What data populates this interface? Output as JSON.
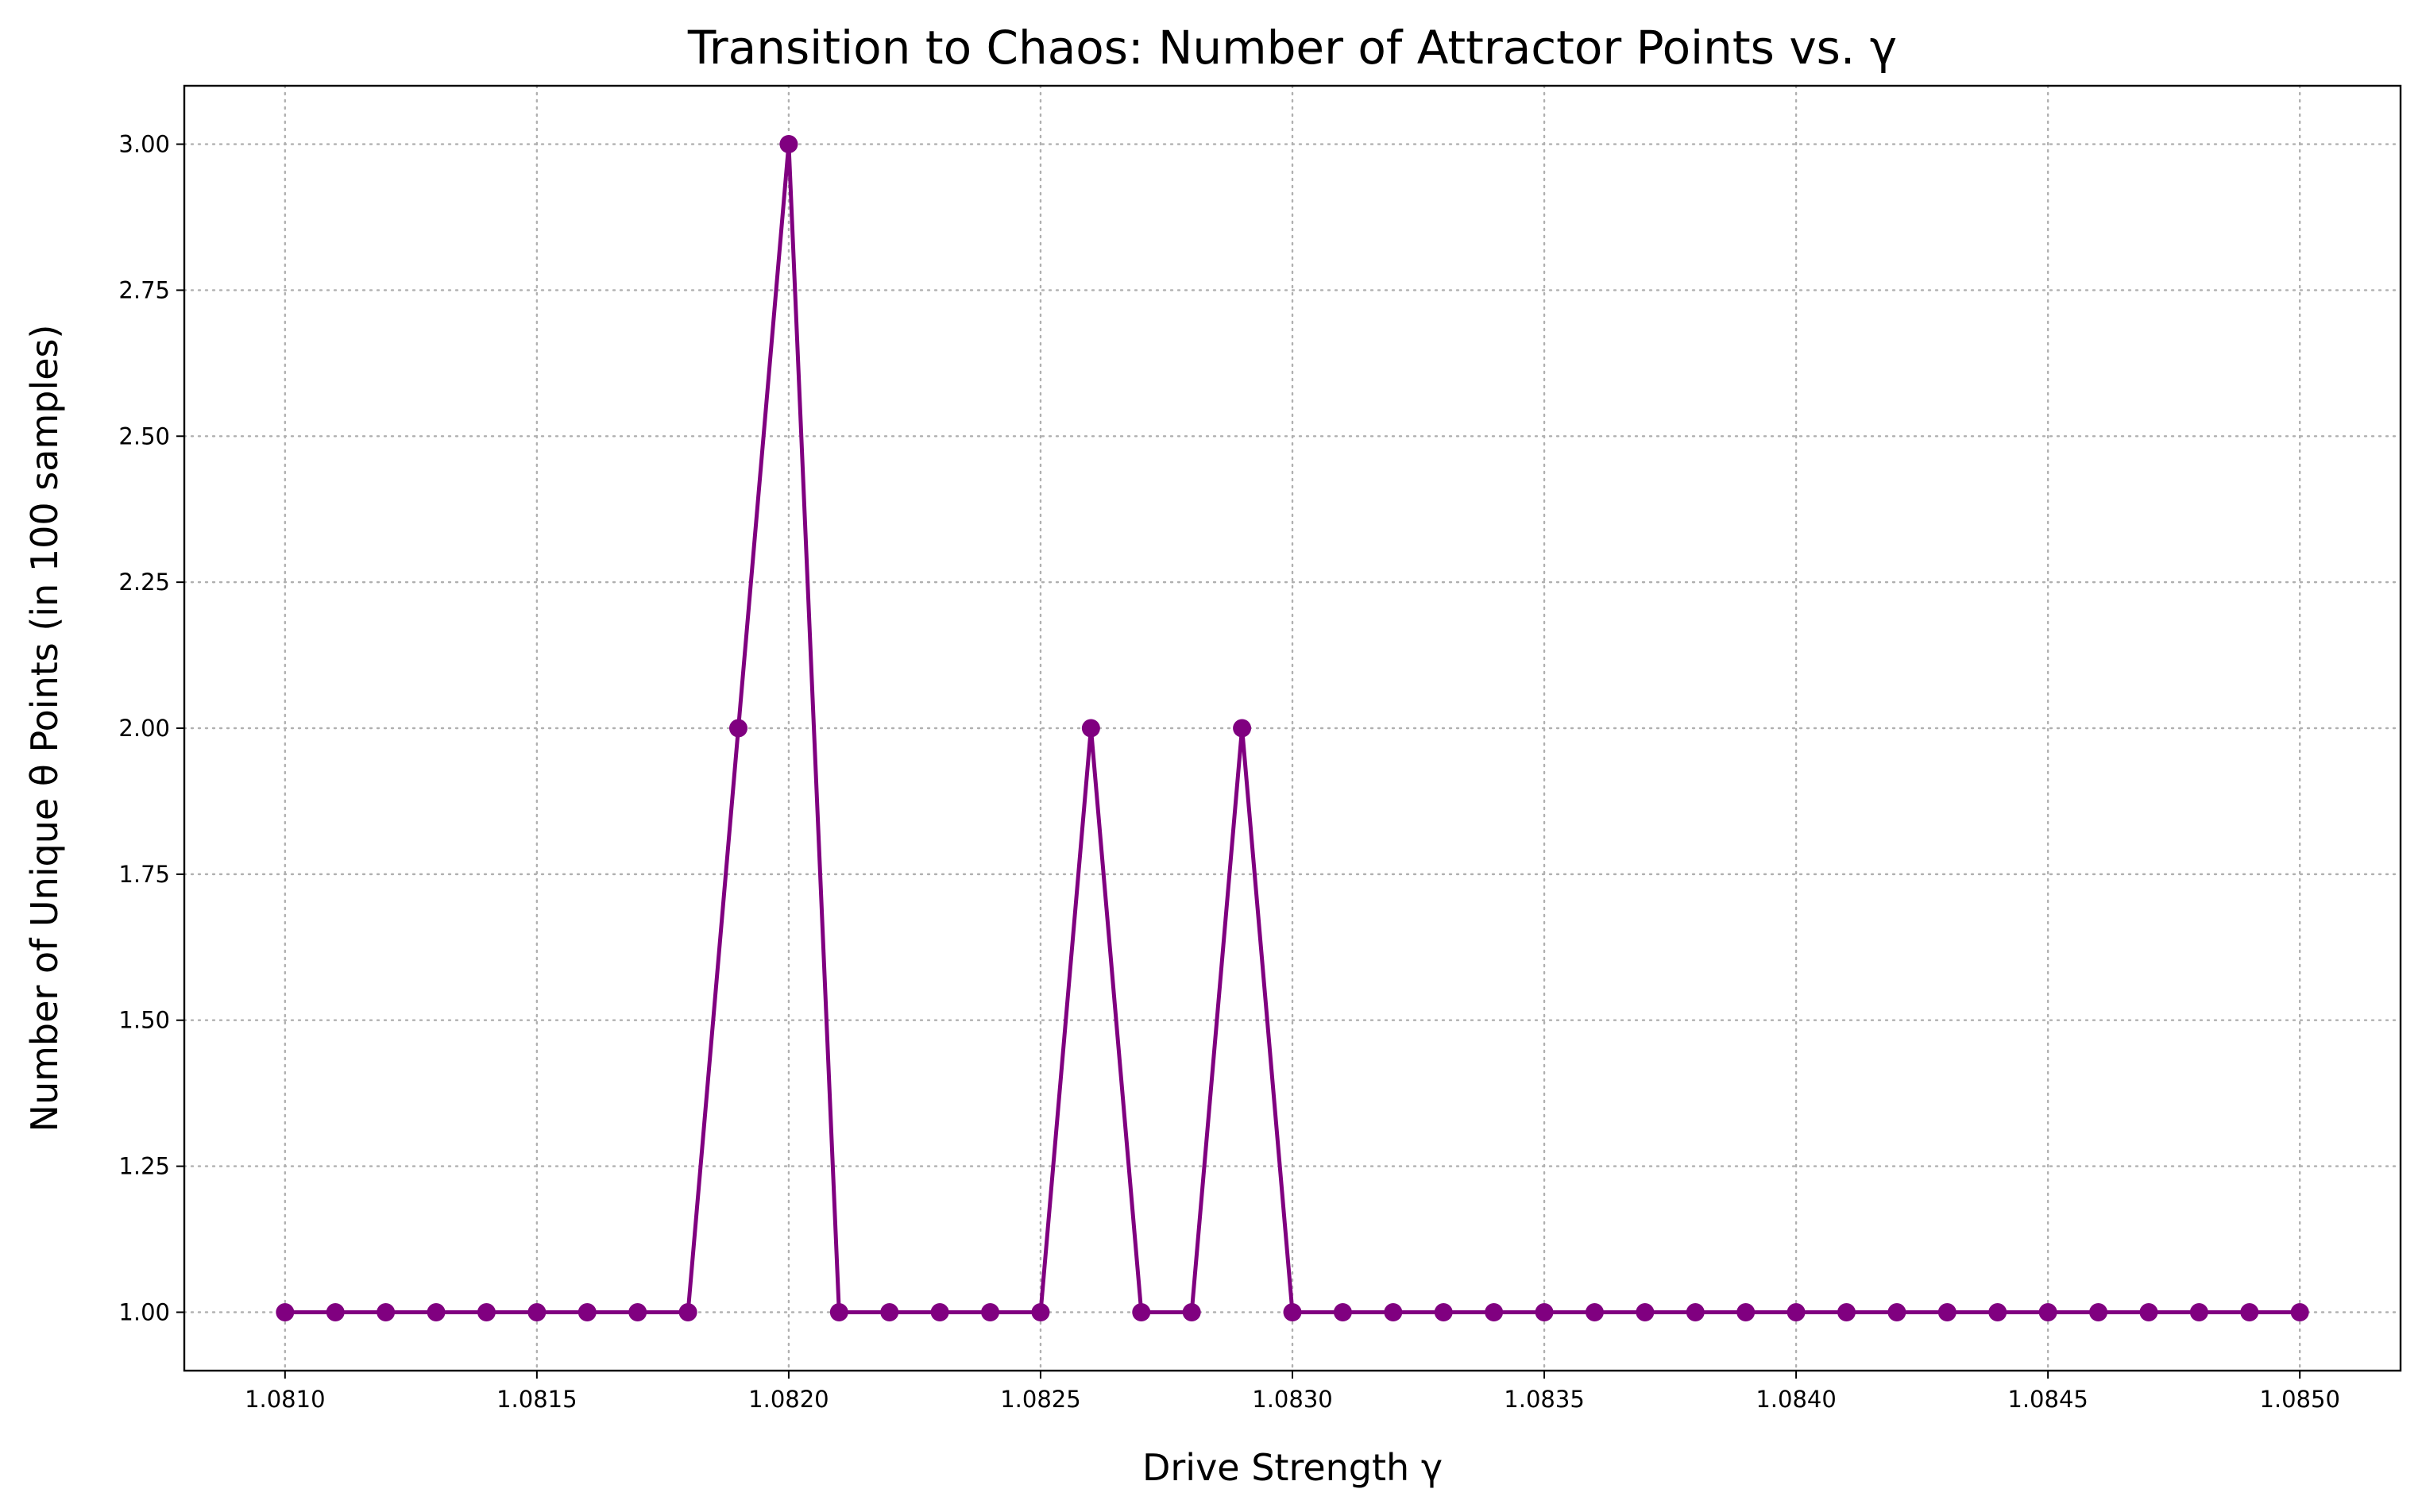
{
  "colors": {
    "series": "#800080",
    "grid": "#b0b0b0",
    "axes": "#000000",
    "background": "#ffffff"
  },
  "chart_data": {
    "type": "line",
    "title": "Transition to Chaos: Number of Attractor Points vs. γ",
    "xlabel": "Drive Strength γ",
    "ylabel": "Number of Unique θ Points (in 100 samples)",
    "xlim": [
      1.0808,
      1.0852
    ],
    "ylim": [
      0.9,
      3.1
    ],
    "grid": true,
    "marker": "circle",
    "x_ticks": [
      "1.0810",
      "1.0815",
      "1.0820",
      "1.0825",
      "1.0830",
      "1.0835",
      "1.0840",
      "1.0845",
      "1.0850"
    ],
    "y_ticks": [
      "1.00",
      "1.25",
      "1.50",
      "1.75",
      "2.00",
      "2.25",
      "2.50",
      "2.75",
      "3.00"
    ],
    "series": [
      {
        "color": "#800080",
        "x": [
          1.081,
          1.0811,
          1.0812,
          1.0813,
          1.0814,
          1.0815,
          1.0816,
          1.0817,
          1.0818,
          1.0819,
          1.082,
          1.0821,
          1.0822,
          1.0823,
          1.0824,
          1.0825,
          1.0826,
          1.0827,
          1.0828,
          1.0829,
          1.083,
          1.0831,
          1.0832,
          1.0833,
          1.0834,
          1.0835,
          1.0836,
          1.0837,
          1.0838,
          1.0839,
          1.084,
          1.0841,
          1.0842,
          1.0843,
          1.0844,
          1.0845,
          1.0846,
          1.0847,
          1.0848,
          1.0849,
          1.085
        ],
        "y": [
          1,
          1,
          1,
          1,
          1,
          1,
          1,
          1,
          1,
          2,
          3,
          1,
          1,
          1,
          1,
          1,
          2,
          1,
          1,
          2,
          1,
          1,
          1,
          1,
          1,
          1,
          1,
          1,
          1,
          1,
          1,
          1,
          1,
          1,
          1,
          1,
          1,
          1,
          1,
          1,
          1
        ]
      }
    ]
  }
}
